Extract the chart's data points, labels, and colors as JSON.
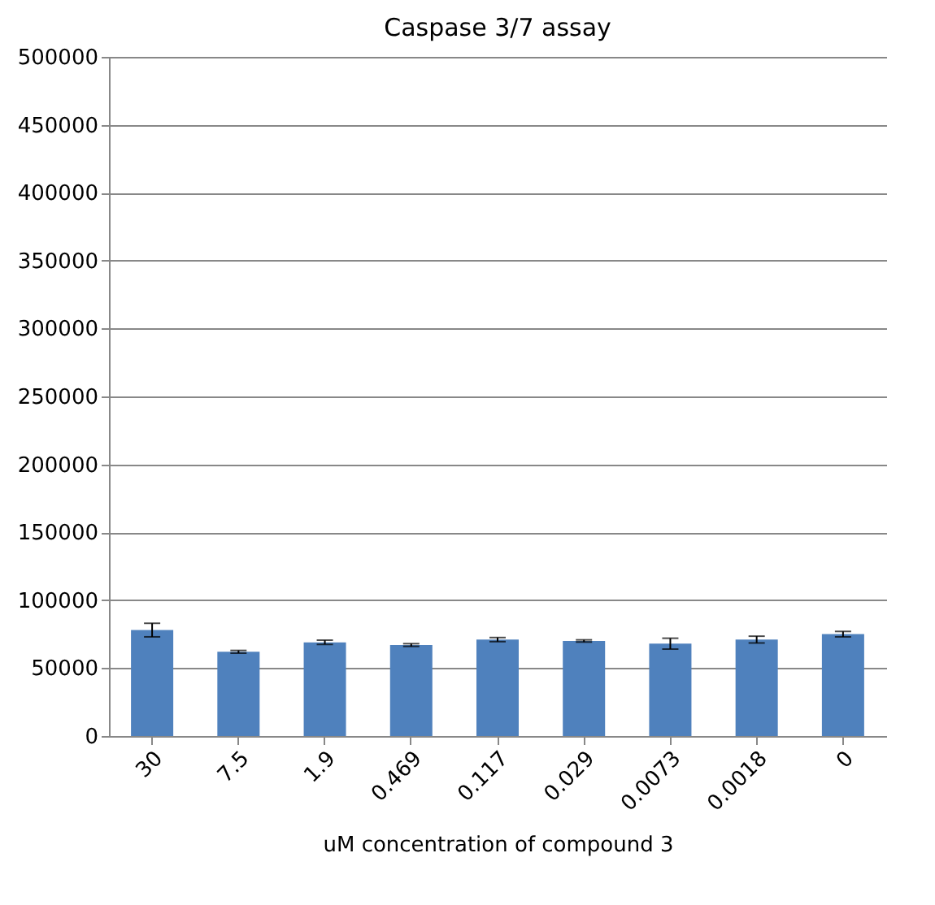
{
  "chart_data": {
    "type": "bar",
    "title": "Caspase 3/7 assay",
    "xlabel": "uM concentration of compound 3",
    "categories": [
      "30",
      "7.5",
      "1.9",
      "0.469",
      "0.117",
      "0.029",
      "0.0073",
      "0.0018",
      "0"
    ],
    "values": [
      78000,
      62000,
      69000,
      67000,
      71000,
      70000,
      68000,
      71000,
      75000
    ],
    "errors": [
      5000,
      1000,
      1500,
      1000,
      1500,
      800,
      4000,
      2500,
      2000
    ],
    "color": "#4f81bd",
    "ylim": [
      0,
      500000
    ],
    "yticks": [
      0,
      50000,
      100000,
      150000,
      200000,
      250000,
      300000,
      350000,
      400000,
      450000,
      500000
    ],
    "grid": "y"
  }
}
